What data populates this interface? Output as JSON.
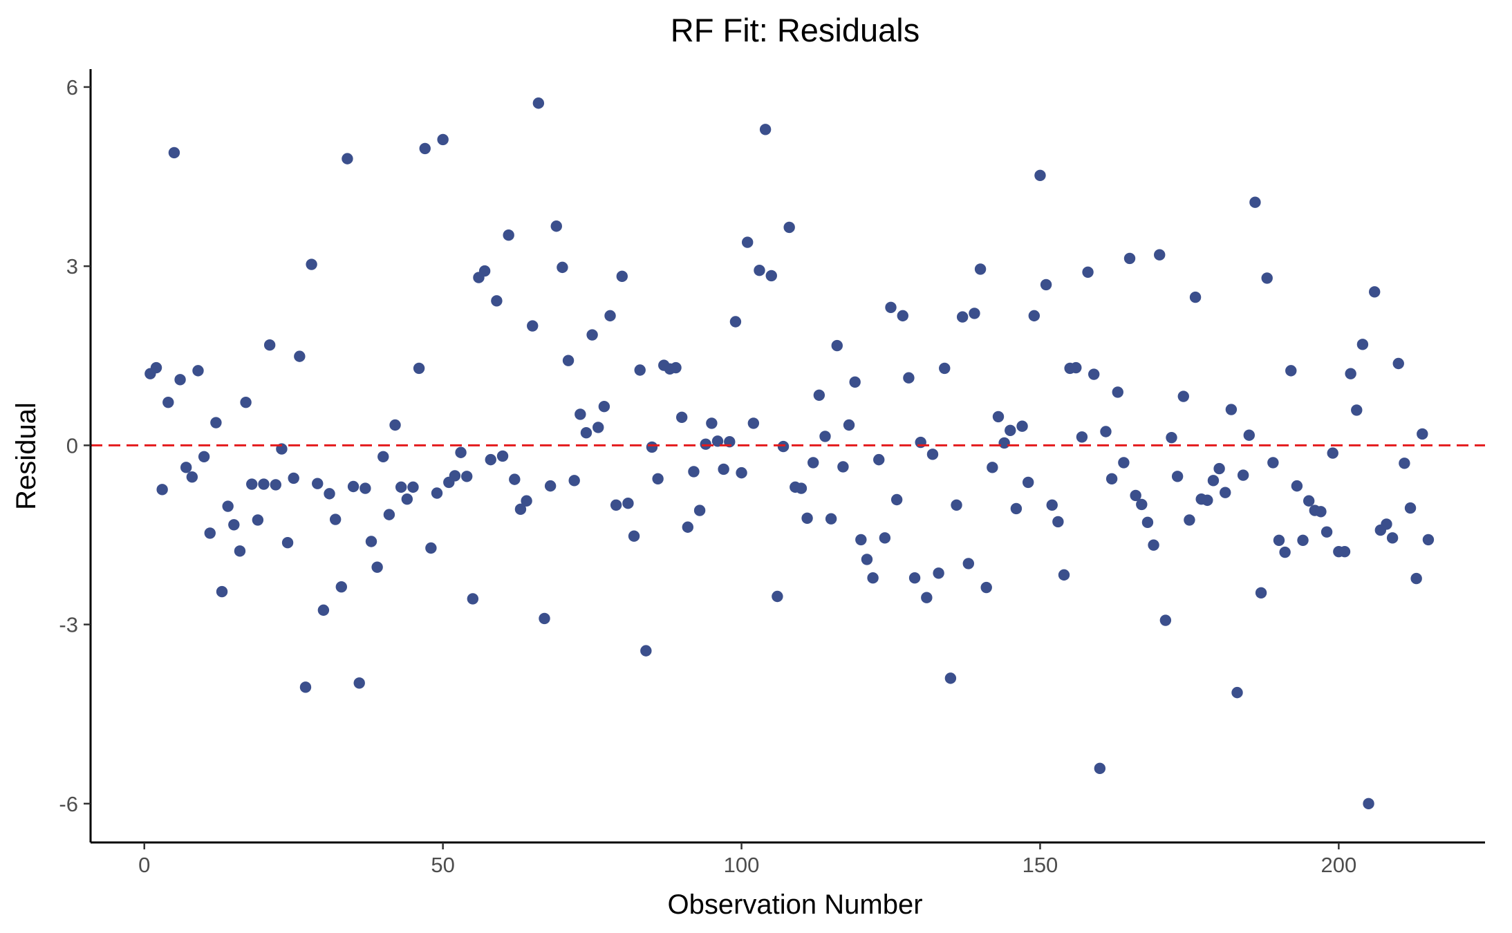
{
  "chart_data": {
    "type": "scatter",
    "title": "RF Fit: Residuals",
    "xlabel": "Observation Number",
    "ylabel": "Residual",
    "xlim": [
      -9,
      224.5
    ],
    "ylim": [
      -6.65,
      6.3
    ],
    "x_ticks": [
      0,
      50,
      100,
      150,
      200
    ],
    "y_ticks": [
      -6,
      -3,
      0,
      3,
      6
    ],
    "x_tick_labels": [
      "0",
      "50",
      "100",
      "150",
      "200"
    ],
    "y_tick_labels": [
      "-6",
      "-3",
      "0",
      "3",
      "6"
    ],
    "grid": false,
    "legend": "none",
    "reference_line": {
      "y": 0,
      "style": "dashed",
      "color": "#e41a1c"
    },
    "point_color": "#3b4f8c",
    "series": [
      {
        "x": [
          1,
          2,
          3,
          4,
          5,
          6,
          7,
          8,
          9,
          10,
          11,
          12,
          13,
          14,
          15,
          16,
          17,
          18,
          19,
          20,
          21,
          22,
          23,
          24,
          25,
          26,
          27,
          28,
          29,
          30,
          31,
          32,
          33,
          34,
          35,
          36,
          37,
          38,
          39,
          40,
          41,
          42,
          43,
          44,
          45,
          46,
          47,
          48,
          49,
          50,
          51,
          52,
          53,
          54,
          55,
          56,
          57,
          58,
          59,
          60,
          61,
          62,
          63,
          64,
          65,
          66,
          67,
          68,
          69,
          70,
          71,
          72,
          73,
          74,
          75,
          76,
          77,
          78,
          79,
          80,
          81,
          82,
          83,
          84,
          85,
          86,
          87,
          88,
          89,
          90,
          91,
          92,
          93,
          94,
          95,
          96,
          97,
          98,
          99,
          100,
          101,
          102,
          103,
          104,
          105,
          106,
          107,
          108,
          109,
          110,
          111,
          112,
          113,
          114,
          115,
          116,
          117,
          118,
          119,
          120,
          121,
          122,
          123,
          124,
          125,
          126,
          127,
          128,
          129,
          130,
          131,
          132,
          133,
          134,
          135,
          136,
          137,
          138,
          139,
          140,
          141,
          142,
          143,
          144,
          145,
          146,
          147,
          148,
          149,
          150,
          151,
          152,
          153,
          154,
          155,
          156,
          157,
          158,
          159,
          160,
          161,
          162,
          163,
          164,
          165,
          166,
          167,
          168,
          169,
          170,
          171,
          172,
          173,
          174,
          175,
          176,
          177,
          178,
          179,
          180,
          181,
          182,
          183,
          184,
          185,
          186,
          187,
          188,
          189,
          190,
          191,
          192,
          193,
          194,
          195,
          196,
          197,
          198,
          199,
          200,
          201,
          202,
          203,
          204,
          205,
          206,
          207,
          208,
          209,
          210,
          211,
          212,
          213,
          214,
          215
        ],
        "y": [
          1.2,
          1.3,
          -0.74,
          0.72,
          4.9,
          1.1,
          -0.37,
          -0.53,
          1.25,
          -0.19,
          -1.47,
          0.38,
          -2.45,
          -1.02,
          -1.33,
          -1.77,
          0.72,
          -0.65,
          -1.25,
          -0.65,
          1.68,
          -0.66,
          -0.06,
          -1.63,
          -0.55,
          1.49,
          -4.05,
          3.03,
          -0.64,
          -2.76,
          -0.81,
          -1.24,
          -2.37,
          4.8,
          -0.69,
          -3.98,
          -0.72,
          -1.61,
          -2.04,
          -0.19,
          -1.16,
          0.34,
          -0.7,
          -0.9,
          -0.7,
          1.29,
          4.97,
          -1.72,
          -0.8,
          5.12,
          -0.62,
          -0.51,
          -0.12,
          -0.52,
          -2.57,
          2.81,
          2.92,
          -0.24,
          2.42,
          -0.18,
          3.52,
          -0.57,
          -1.07,
          -0.93,
          2.0,
          5.73,
          -2.9,
          -0.68,
          3.67,
          2.98,
          1.42,
          -0.59,
          0.52,
          0.21,
          1.85,
          0.3,
          0.65,
          2.17,
          -1.0,
          2.83,
          -0.97,
          -1.52,
          1.26,
          -3.44,
          -0.03,
          -0.56,
          1.34,
          1.28,
          1.3,
          0.47,
          -1.37,
          -0.44,
          -1.09,
          0.02,
          0.37,
          0.07,
          -0.4,
          0.06,
          2.07,
          -0.46,
          3.4,
          0.37,
          2.93,
          5.29,
          2.84,
          -2.53,
          -0.02,
          3.65,
          -0.7,
          -0.72,
          -1.22,
          -0.29,
          0.84,
          0.15,
          -1.23,
          1.67,
          -0.36,
          0.34,
          1.06,
          -1.58,
          -1.91,
          -2.22,
          -0.24,
          -1.55,
          2.31,
          -0.91,
          2.17,
          1.13,
          -2.22,
          0.05,
          -2.55,
          -0.15,
          -2.14,
          1.29,
          -3.9,
          -1.0,
          2.15,
          -1.98,
          2.21,
          2.95,
          -2.38,
          -0.37,
          0.48,
          0.04,
          0.25,
          -1.06,
          0.32,
          -0.62,
          2.17,
          4.52,
          2.69,
          -1.0,
          -1.28,
          -2.17,
          1.29,
          1.3,
          0.14,
          2.9,
          1.19,
          -5.41,
          0.23,
          -0.56,
          0.89,
          -0.29,
          3.13,
          -0.84,
          -0.99,
          -1.29,
          -1.67,
          3.19,
          -2.93,
          0.13,
          -0.52,
          0.82,
          -1.25,
          2.48,
          -0.9,
          -0.92,
          -0.59,
          -0.39,
          -0.79,
          0.6,
          -4.14,
          -0.5,
          0.17,
          4.07,
          -2.47,
          2.8,
          -0.29,
          -1.59,
          -1.79,
          1.25,
          -0.68,
          -1.59,
          -0.93,
          -1.09,
          -1.11,
          -1.45,
          -0.13,
          -1.78,
          -1.78,
          1.2,
          0.59,
          1.69,
          -6.0,
          2.57,
          -1.42,
          -1.32,
          -1.55,
          1.37,
          -0.3,
          -1.05,
          -2.23,
          0.19,
          -1.58
        ]
      }
    ]
  }
}
